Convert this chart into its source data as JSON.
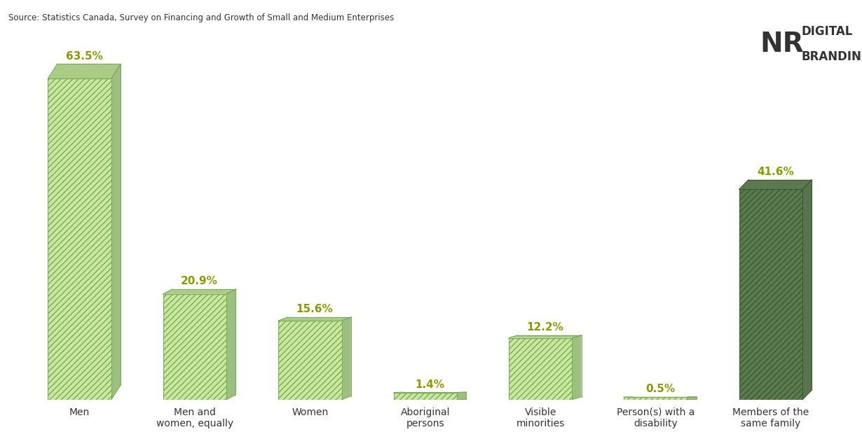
{
  "categories": [
    "Men",
    "Men and\nwomen, equally",
    "Women",
    "Aboriginal\npersons",
    "Visible\nminorities",
    "Person(s) with a\ndisability",
    "Members of the\nsame family"
  ],
  "values": [
    63.5,
    20.9,
    15.6,
    1.4,
    12.2,
    0.5,
    41.6
  ],
  "labels": [
    "63.5%",
    "20.9%",
    "15.6%",
    "1.4%",
    "12.2%",
    "0.5%",
    "41.6%"
  ],
  "bar_face_color": "#b8d98d",
  "bar_face_color_dark": "#4a6741",
  "bar_hatch": "////",
  "bar_edge_color": "#8ab56a",
  "label_color": "#8a9a00",
  "source_text": "Source: Statistics Canada, Survey on Financing and Growth of Small and Medium Enterprises",
  "background_color": "#ffffff",
  "ylim": [
    0,
    70
  ],
  "figsize": [
    12.3,
    6.27
  ],
  "dpi": 100
}
